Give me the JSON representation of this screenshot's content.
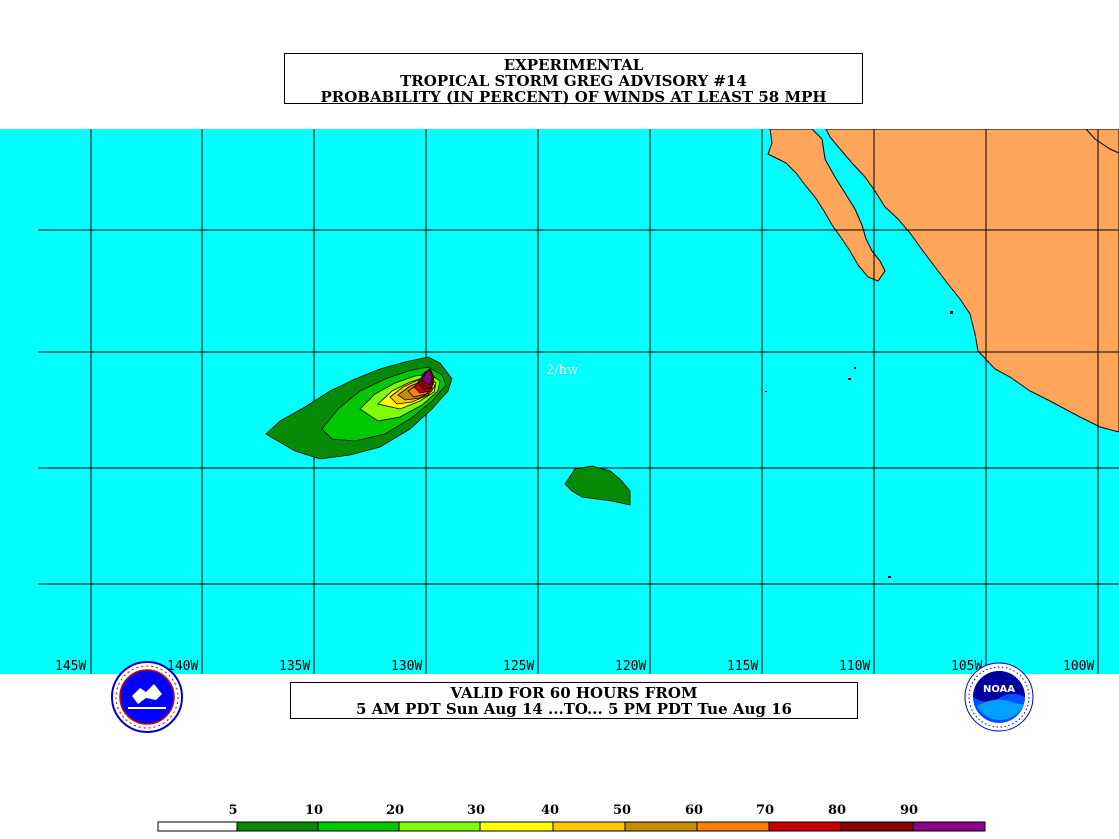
{
  "title": {
    "line1": "EXPERIMENTAL",
    "line2": "TROPICAL STORM GREG ADVISORY #14",
    "line3": "PROBABILITY (IN PERCENT) OF WINDS AT LEAST 58 MPH"
  },
  "map": {
    "ocean_color": "#00ffff",
    "land_color": "#ffa65a",
    "annotation": "2/hw",
    "longitude_labels": [
      "145W",
      "140W",
      "135W",
      "130W",
      "125W",
      "120W",
      "115W",
      "110W",
      "105W",
      "100W"
    ]
  },
  "valid": {
    "line1": "VALID FOR 60 HOURS FROM",
    "line2": "5 AM PDT Sun Aug 14 ...TO... 5 PM PDT Tue Aug 16"
  },
  "legend": {
    "labels": [
      "5",
      "10",
      "20",
      "30",
      "40",
      "50",
      "60",
      "70",
      "80",
      "90"
    ],
    "colors": [
      "#ffffff",
      "#078b07",
      "#00c800",
      "#80ff00",
      "#ffff00",
      "#ffc800",
      "#c88c00",
      "#ff8000",
      "#c80000",
      "#8b0000",
      "#8b008b"
    ]
  },
  "logos": {
    "left": "nws-logo-icon",
    "right": "noaa-logo-icon",
    "noaa_text": "NOAA"
  }
}
